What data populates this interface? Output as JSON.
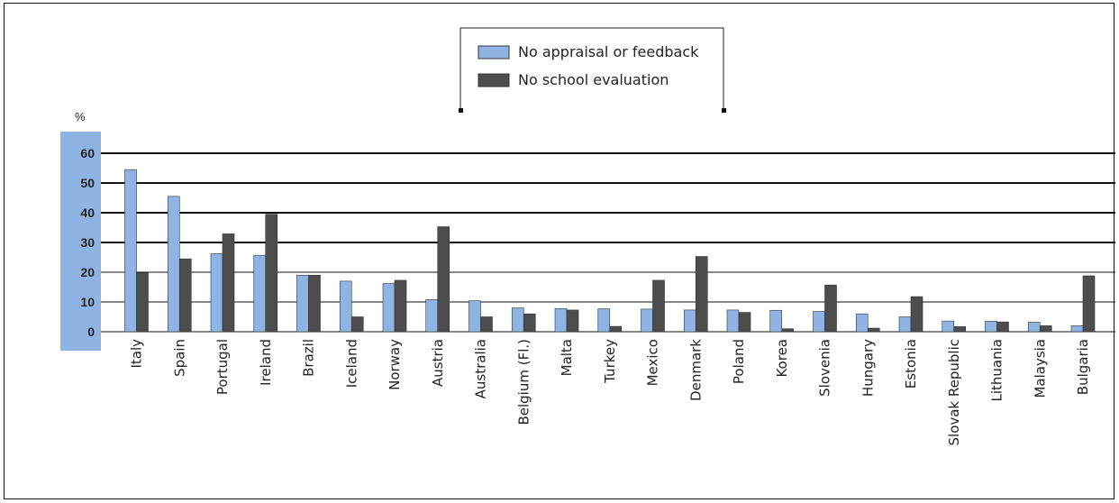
{
  "chart_data": {
    "type": "bar",
    "title": "",
    "xlabel": "",
    "ylabel": "%",
    "ylim": [
      0,
      60
    ],
    "yticks": [
      0,
      10,
      20,
      30,
      40,
      50,
      60
    ],
    "grid": true,
    "legend_position": "top-center",
    "categories": [
      "Italy",
      "Spain",
      "Portugal",
      "Ireland",
      "Brazil",
      "Iceland",
      "Norway",
      "Austria",
      "Australia",
      "Belgium (Fl.)",
      "Malta",
      "Turkey",
      "Mexico",
      "Denmark",
      "Poland",
      "Korea",
      "Slovenia",
      "Hungary",
      "Estonia",
      "Slovak Republic",
      "Lithuania",
      "Malaysia",
      "Bulgaria"
    ],
    "series": [
      {
        "name": "No appraisal or feedback",
        "color": "#8fb4e3",
        "values": [
          54.5,
          45.5,
          26.2,
          25.7,
          19.0,
          17.0,
          16.2,
          10.8,
          10.4,
          8.0,
          7.8,
          7.7,
          7.6,
          7.3,
          7.3,
          7.2,
          6.8,
          6.0,
          5.0,
          3.6,
          3.5,
          3.2,
          2.0
        ]
      },
      {
        "name": "No school evaluation",
        "color": "#4d4d4d",
        "values": [
          19.8,
          24.5,
          32.9,
          39.5,
          19.0,
          5.0,
          17.3,
          35.3,
          5.0,
          6.0,
          7.3,
          1.8,
          17.3,
          25.3,
          6.5,
          1.0,
          15.7,
          1.2,
          11.8,
          1.7,
          3.3,
          2.0,
          18.8
        ]
      }
    ]
  }
}
